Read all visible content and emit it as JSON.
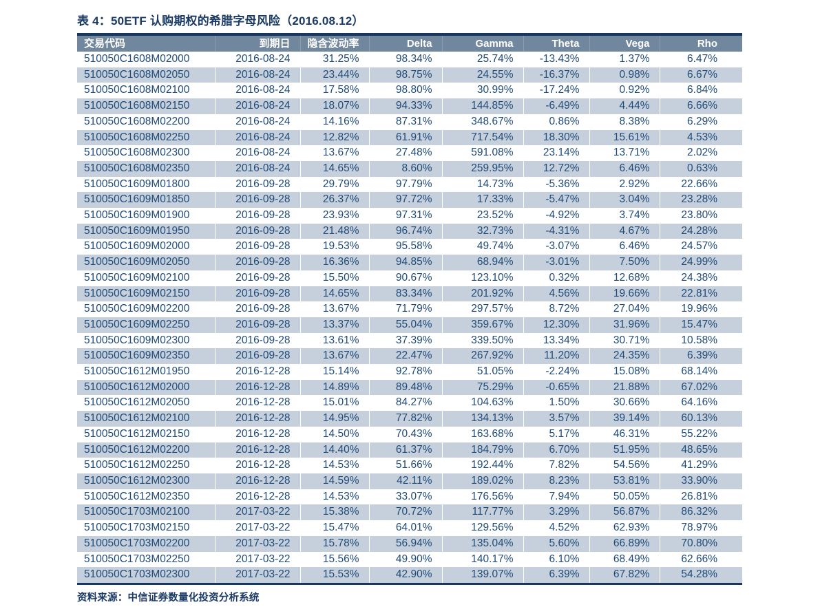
{
  "title": "表 4：50ETF 认购期权的希腊字母风险（2016.08.12）",
  "source": "资料来源：中信证券数量化投资分析系统",
  "colors": {
    "header_bg": "#71879e",
    "stripe": "#c6d0dc",
    "text_navy": "#1f4a78",
    "border_navy": "#17375e",
    "title_navy": "#1b3a66"
  },
  "table": {
    "columns": [
      "交易代码",
      "到期日",
      "隐含波动率",
      "Delta",
      "Gamma",
      "Theta",
      "Vega",
      "Rho"
    ],
    "rows": [
      [
        "510050C1608M02000",
        "2016-08-24",
        "31.25%",
        "98.34%",
        "25.74%",
        "-13.43%",
        "1.37%",
        "6.47%"
      ],
      [
        "510050C1608M02050",
        "2016-08-24",
        "23.44%",
        "98.75%",
        "24.55%",
        "-16.37%",
        "0.98%",
        "6.67%"
      ],
      [
        "510050C1608M02100",
        "2016-08-24",
        "17.58%",
        "98.80%",
        "30.99%",
        "-17.24%",
        "0.92%",
        "6.84%"
      ],
      [
        "510050C1608M02150",
        "2016-08-24",
        "18.07%",
        "94.33%",
        "144.85%",
        "-6.49%",
        "4.44%",
        "6.66%"
      ],
      [
        "510050C1608M02200",
        "2016-08-24",
        "14.16%",
        "87.31%",
        "348.67%",
        "0.86%",
        "8.38%",
        "6.29%"
      ],
      [
        "510050C1608M02250",
        "2016-08-24",
        "12.82%",
        "61.91%",
        "717.54%",
        "18.30%",
        "15.61%",
        "4.53%"
      ],
      [
        "510050C1608M02300",
        "2016-08-24",
        "13.67%",
        "27.48%",
        "591.08%",
        "23.14%",
        "13.71%",
        "2.02%"
      ],
      [
        "510050C1608M02350",
        "2016-08-24",
        "14.65%",
        "8.60%",
        "259.95%",
        "12.72%",
        "6.46%",
        "0.63%"
      ],
      [
        "510050C1609M01800",
        "2016-09-28",
        "29.79%",
        "97.79%",
        "14.73%",
        "-5.36%",
        "2.92%",
        "22.66%"
      ],
      [
        "510050C1609M01850",
        "2016-09-28",
        "26.37%",
        "97.72%",
        "17.33%",
        "-5.47%",
        "3.04%",
        "23.28%"
      ],
      [
        "510050C1609M01900",
        "2016-09-28",
        "23.93%",
        "97.31%",
        "23.52%",
        "-4.92%",
        "3.74%",
        "23.80%"
      ],
      [
        "510050C1609M01950",
        "2016-09-28",
        "21.48%",
        "96.74%",
        "32.73%",
        "-4.31%",
        "4.67%",
        "24.28%"
      ],
      [
        "510050C1609M02000",
        "2016-09-28",
        "19.53%",
        "95.58%",
        "49.74%",
        "-3.07%",
        "6.46%",
        "24.57%"
      ],
      [
        "510050C1609M02050",
        "2016-09-28",
        "16.36%",
        "94.85%",
        "68.94%",
        "-3.01%",
        "7.50%",
        "24.99%"
      ],
      [
        "510050C1609M02100",
        "2016-09-28",
        "15.50%",
        "90.67%",
        "123.10%",
        "0.32%",
        "12.68%",
        "24.38%"
      ],
      [
        "510050C1609M02150",
        "2016-09-28",
        "14.65%",
        "83.34%",
        "201.92%",
        "4.56%",
        "19.66%",
        "22.81%"
      ],
      [
        "510050C1609M02200",
        "2016-09-28",
        "13.67%",
        "71.79%",
        "297.57%",
        "8.72%",
        "27.04%",
        "19.96%"
      ],
      [
        "510050C1609M02250",
        "2016-09-28",
        "13.37%",
        "55.04%",
        "359.67%",
        "12.30%",
        "31.96%",
        "15.47%"
      ],
      [
        "510050C1609M02300",
        "2016-09-28",
        "13.61%",
        "37.39%",
        "339.50%",
        "13.34%",
        "30.71%",
        "10.58%"
      ],
      [
        "510050C1609M02350",
        "2016-09-28",
        "13.67%",
        "22.47%",
        "267.92%",
        "11.20%",
        "24.35%",
        "6.39%"
      ],
      [
        "510050C1612M01950",
        "2016-12-28",
        "15.14%",
        "92.78%",
        "51.05%",
        "-2.24%",
        "15.08%",
        "68.14%"
      ],
      [
        "510050C1612M02000",
        "2016-12-28",
        "14.89%",
        "89.48%",
        "75.29%",
        "-0.65%",
        "21.88%",
        "67.02%"
      ],
      [
        "510050C1612M02050",
        "2016-12-28",
        "15.01%",
        "84.27%",
        "104.63%",
        "1.50%",
        "30.66%",
        "64.16%"
      ],
      [
        "510050C1612M02100",
        "2016-12-28",
        "14.95%",
        "77.82%",
        "134.13%",
        "3.57%",
        "39.14%",
        "60.13%"
      ],
      [
        "510050C1612M02150",
        "2016-12-28",
        "14.50%",
        "70.43%",
        "163.68%",
        "5.17%",
        "46.31%",
        "55.22%"
      ],
      [
        "510050C1612M02200",
        "2016-12-28",
        "14.40%",
        "61.37%",
        "184.79%",
        "6.70%",
        "51.95%",
        "48.65%"
      ],
      [
        "510050C1612M02250",
        "2016-12-28",
        "14.53%",
        "51.66%",
        "192.44%",
        "7.82%",
        "54.56%",
        "41.29%"
      ],
      [
        "510050C1612M02300",
        "2016-12-28",
        "14.59%",
        "42.11%",
        "189.02%",
        "8.23%",
        "53.81%",
        "33.90%"
      ],
      [
        "510050C1612M02350",
        "2016-12-28",
        "14.53%",
        "33.07%",
        "176.56%",
        "7.94%",
        "50.05%",
        "26.81%"
      ],
      [
        "510050C1703M02100",
        "2017-03-22",
        "15.38%",
        "70.72%",
        "117.77%",
        "3.29%",
        "56.87%",
        "86.32%"
      ],
      [
        "510050C1703M02150",
        "2017-03-22",
        "15.47%",
        "64.01%",
        "129.56%",
        "4.52%",
        "62.93%",
        "78.97%"
      ],
      [
        "510050C1703M02200",
        "2017-03-22",
        "15.78%",
        "56.94%",
        "135.04%",
        "5.60%",
        "66.89%",
        "70.80%"
      ],
      [
        "510050C1703M02250",
        "2017-03-22",
        "15.56%",
        "49.90%",
        "140.17%",
        "6.10%",
        "68.49%",
        "62.66%"
      ],
      [
        "510050C1703M02300",
        "2017-03-22",
        "15.53%",
        "42.90%",
        "139.07%",
        "6.39%",
        "67.82%",
        "54.28%"
      ]
    ]
  }
}
